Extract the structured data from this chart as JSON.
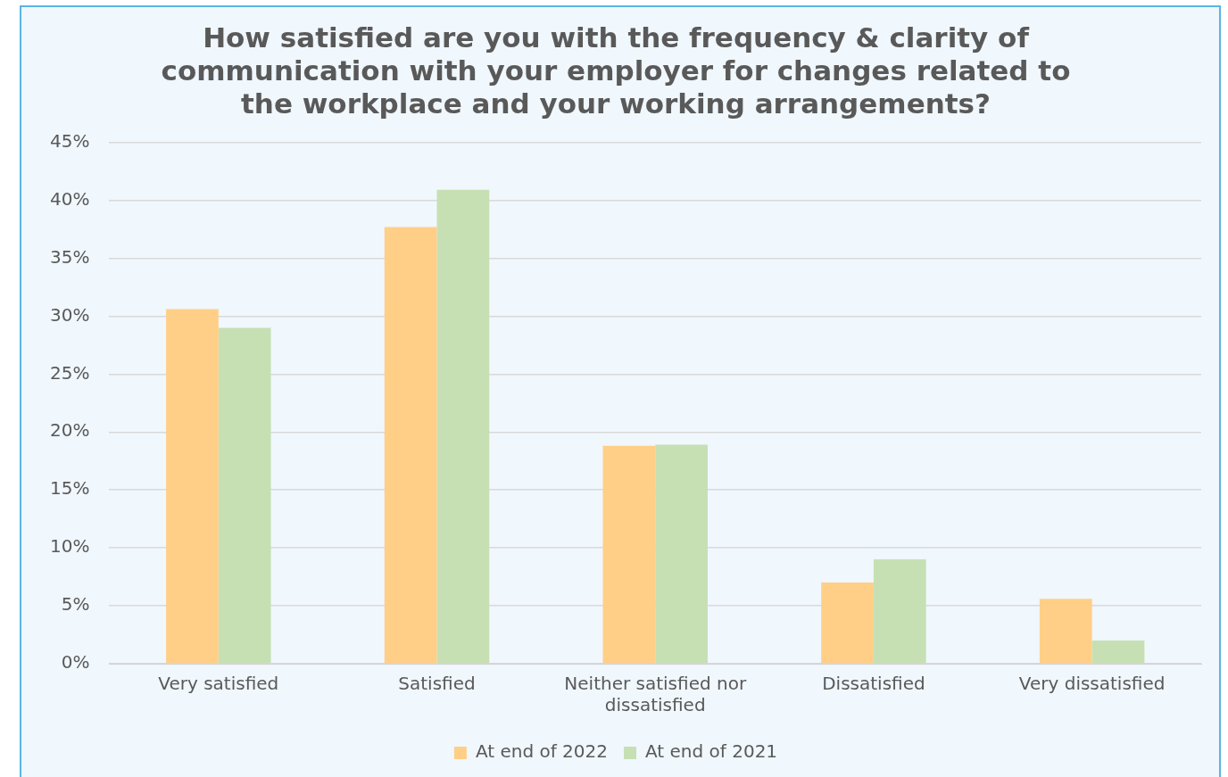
{
  "chart_data": {
    "type": "bar",
    "title": "How satisfied are you with the frequency & clarity of communication with your employer for changes related to the workplace and your working arrangements?",
    "categories": [
      "Very satisfied",
      "Satisfied",
      "Neither satisfied nor dissatisfied",
      "Dissatisfied",
      "Very dissatisfied"
    ],
    "series": [
      {
        "name": "At end of 2022",
        "color": "#ffcf87",
        "values": [
          30.6,
          37.7,
          18.8,
          7.0,
          5.6
        ]
      },
      {
        "name": "At end of 2021",
        "color": "#c6e0b4",
        "values": [
          29.0,
          40.9,
          18.9,
          9.0,
          2.0
        ]
      }
    ],
    "ylim": [
      0,
      45
    ],
    "yticks": [
      {
        "value": 0,
        "label": "0%"
      },
      {
        "value": 5,
        "label": "5%"
      },
      {
        "value": 10,
        "label": "10%"
      },
      {
        "value": 15,
        "label": "15%"
      },
      {
        "value": 20,
        "label": "20%"
      },
      {
        "value": 25,
        "label": "25%"
      },
      {
        "value": 30,
        "label": "30%"
      },
      {
        "value": 35,
        "label": "35%"
      },
      {
        "value": 40,
        "label": "40%"
      },
      {
        "value": 45,
        "label": "45%"
      }
    ],
    "grid": "y",
    "legend": "bottom"
  }
}
